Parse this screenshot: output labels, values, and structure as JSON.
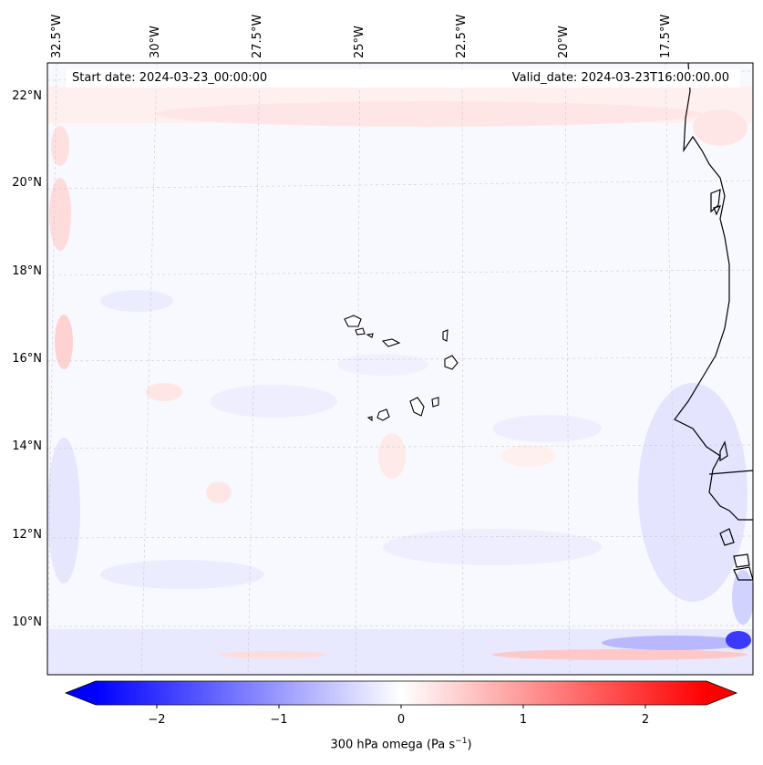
{
  "map": {
    "start_date": "Start date: 2024-03-23_00:00:00",
    "valid_date": "Valid_date: 2024-03-23T16:00:00.00",
    "lon_labels": [
      "32.5°W",
      "30°W",
      "27.5°W",
      "25°W",
      "22.5°W",
      "20°W",
      "17.5°W"
    ],
    "lat_labels": [
      "22°N",
      "20°N",
      "18°N",
      "16°N",
      "14°N",
      "12°N",
      "10°N"
    ],
    "colors": {
      "negative": "#0000ff",
      "zero": "#ffffff",
      "positive": "#ff0000",
      "coast": "#000000",
      "grid": "#c8c8c8"
    }
  },
  "colorbar": {
    "label": "300 hPa omega (Pa s",
    "label_exp": "−1",
    "label_close": ")",
    "ticks": [
      "−2",
      "−1",
      "0",
      "1",
      "2"
    ],
    "range": [
      -2.75,
      2.75
    ],
    "tick_values": [
      -2,
      -1,
      0,
      1,
      2
    ]
  }
}
